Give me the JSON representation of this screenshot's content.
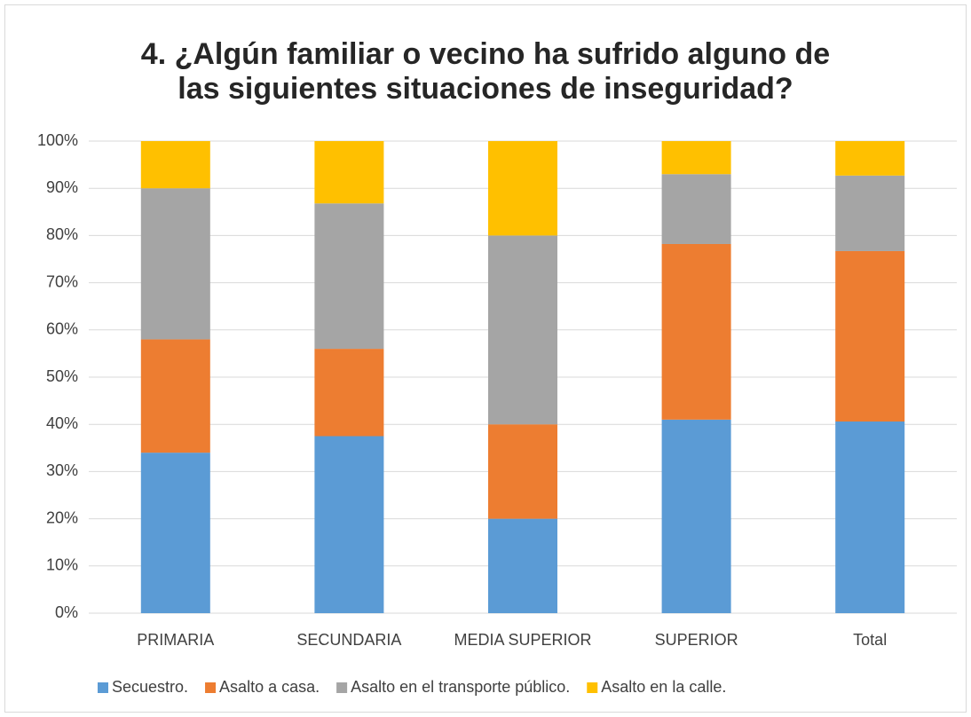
{
  "chart_data": {
    "type": "bar",
    "stacked": true,
    "title": "4. ¿Algún familiar o vecino ha sufrido alguno de las siguientes situaciones de inseguridad?",
    "categories": [
      "PRIMARIA",
      "SECUNDARIA",
      "MEDIA SUPERIOR",
      "SUPERIOR",
      "Total"
    ],
    "series": [
      {
        "name": "Secuestro.",
        "color": "#5b9bd5",
        "values": [
          34,
          37.5,
          20,
          41,
          40.6
        ]
      },
      {
        "name": "Asalto a casa.",
        "color": "#ed7d31",
        "values": [
          24,
          18.5,
          20,
          37.2,
          36.1
        ]
      },
      {
        "name": "Asalto en el transporte público.",
        "color": "#a5a5a5",
        "values": [
          32,
          30.8,
          40,
          14.8,
          16
        ]
      },
      {
        "name": "Asalto en la calle.",
        "color": "#ffc000",
        "values": [
          10,
          13.2,
          20,
          7,
          7.3
        ]
      }
    ],
    "ylim": [
      0,
      100
    ],
    "yticks": [
      {
        "value": 0,
        "label": "0%"
      },
      {
        "value": 10,
        "label": "10%"
      },
      {
        "value": 20,
        "label": "20%"
      },
      {
        "value": 30,
        "label": "30%"
      },
      {
        "value": 40,
        "label": "40%"
      },
      {
        "value": 50,
        "label": "50%"
      },
      {
        "value": 60,
        "label": "60%"
      },
      {
        "value": 70,
        "label": "70%"
      },
      {
        "value": 80,
        "label": "80%"
      },
      {
        "value": 90,
        "label": "90%"
      },
      {
        "value": 100,
        "label": "100%"
      }
    ],
    "grid": true,
    "legend": "bottom"
  }
}
